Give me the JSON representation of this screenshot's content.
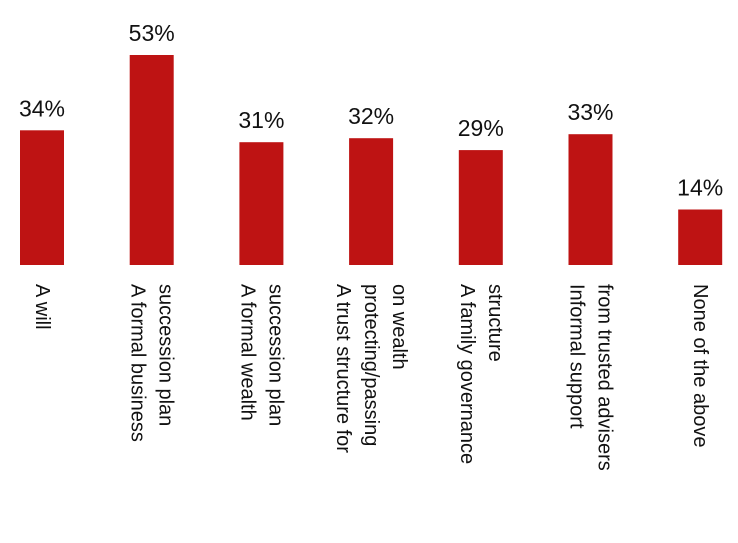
{
  "chart_data": {
    "type": "bar",
    "categories": [
      [
        "A will"
      ],
      [
        "A formal business",
        "succession plan"
      ],
      [
        "A formal wealth",
        "succession plan"
      ],
      [
        "A trust structure for",
        "protecting/passing",
        "on wealth"
      ],
      [
        "A family governance",
        "structure"
      ],
      [
        "Informal support",
        "from trusted advisers"
      ],
      [
        "None of the above"
      ]
    ],
    "values": [
      34,
      53,
      31,
      32,
      29,
      33,
      14
    ],
    "value_labels": [
      "34%",
      "53%",
      "31%",
      "32%",
      "29%",
      "33%",
      "14%"
    ],
    "unit": "%",
    "ylim": [
      0,
      53
    ],
    "grid": false,
    "legend": "none",
    "bar_color": "#BE1313"
  }
}
